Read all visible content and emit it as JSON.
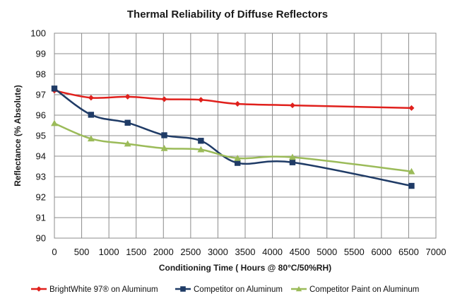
{
  "chart_data": {
    "type": "line",
    "title": "Thermal Reliability of Diffuse Reflectors",
    "xlabel": "Conditioning Time ( Hours @ 80°C/50%RH)",
    "ylabel": "Reflectance (% Absolute)",
    "xlim": [
      0,
      7000
    ],
    "ylim": [
      90,
      100
    ],
    "xticks": [
      0,
      500,
      1000,
      1500,
      2000,
      2500,
      3000,
      3500,
      4000,
      4500,
      5000,
      5500,
      6000,
      6500,
      7000
    ],
    "yticks": [
      90,
      91,
      92,
      93,
      94,
      95,
      96,
      97,
      98,
      99,
      100
    ],
    "grid": true,
    "smooth": true,
    "legend_position": "bottom",
    "series": [
      {
        "name": "BrightWhite 97® on Aluminum",
        "color": "#e0201c",
        "marker": "diamond",
        "x": [
          0,
          672,
          1344,
          2016,
          2688,
          3360,
          4368,
          6552
        ],
        "y": [
          97.2,
          96.85,
          96.9,
          96.78,
          96.75,
          96.55,
          96.48,
          96.35
        ]
      },
      {
        "name": "Competitor on Aluminum",
        "color": "#1f3b66",
        "marker": "square",
        "x": [
          0,
          672,
          1344,
          2016,
          2688,
          3360,
          4368,
          6552
        ],
        "y": [
          97.3,
          96.02,
          95.63,
          95.02,
          94.75,
          93.67,
          93.7,
          92.55
        ]
      },
      {
        "name": "Competitor Paint on Aluminum",
        "color": "#9bbb59",
        "marker": "triangle",
        "x": [
          0,
          672,
          1344,
          2016,
          2688,
          3360,
          4368,
          6552
        ],
        "y": [
          95.6,
          94.85,
          94.6,
          94.38,
          94.32,
          93.9,
          93.95,
          93.25
        ]
      }
    ]
  }
}
